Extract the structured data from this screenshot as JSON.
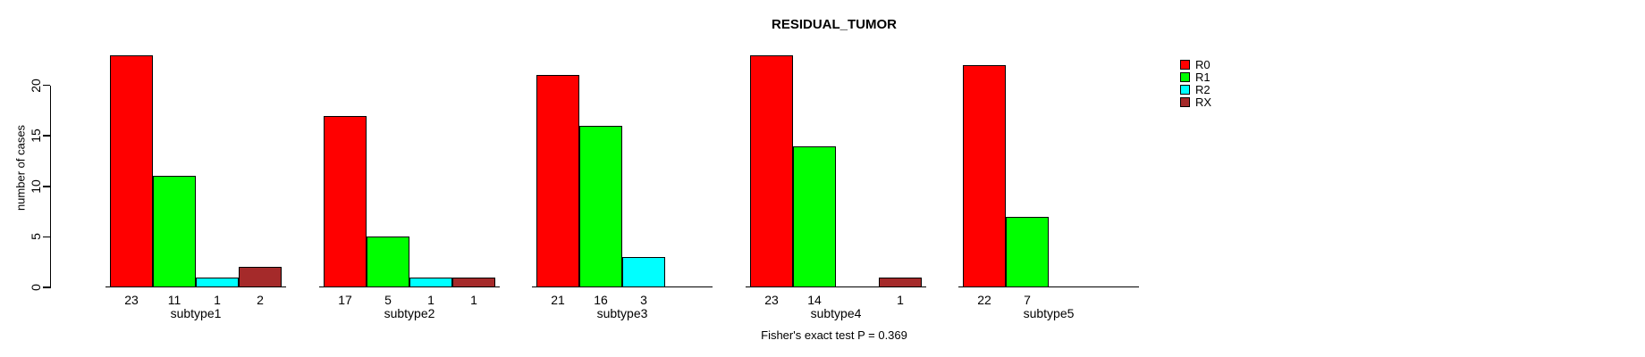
{
  "page": {
    "background_color": "#FFFFFF",
    "axis_color": "#000000"
  },
  "header": {
    "title": "RESIDUAL_TUMOR"
  },
  "footer": {
    "annotation": "Fisher's exact test P = 0.369"
  },
  "legend": {
    "items": [
      {
        "label": "R0",
        "color": "#FF0000"
      },
      {
        "label": "R1",
        "color": "#00FF00"
      },
      {
        "label": "R2",
        "color": "#00FFFF"
      },
      {
        "label": "RX",
        "color": "#A52A2A"
      }
    ]
  },
  "chart_data": {
    "type": "bar",
    "title": "RESIDUAL_TUMOR",
    "xlabel": "",
    "ylabel": "number of cases",
    "categories": [
      "subtype1",
      "subtype2",
      "subtype3",
      "subtype4",
      "subtype5"
    ],
    "series": [
      {
        "name": "R0",
        "color": "#FF0000",
        "values": [
          23,
          17,
          21,
          23,
          22
        ]
      },
      {
        "name": "R1",
        "color": "#00FF00",
        "values": [
          11,
          5,
          16,
          14,
          7
        ]
      },
      {
        "name": "R2",
        "color": "#00FFFF",
        "values": [
          1,
          1,
          3,
          0,
          0
        ]
      },
      {
        "name": "RX",
        "color": "#A52A2A",
        "values": [
          2,
          1,
          0,
          1,
          0
        ]
      }
    ],
    "bar_value_labels": [
      [
        "23",
        "11",
        "1",
        "2"
      ],
      [
        "17",
        "5",
        "1",
        "1"
      ],
      [
        "21",
        "16",
        "3",
        ""
      ],
      [
        "23",
        "14",
        "",
        "1"
      ],
      [
        "22",
        "7",
        "",
        ""
      ]
    ],
    "yticks": [
      0,
      5,
      10,
      15,
      20
    ],
    "ylim": [
      0,
      23.5
    ],
    "grid": false,
    "zero_bars_hidden": true,
    "legend_position": "right",
    "legend_entries": [
      "R0",
      "R1",
      "R2",
      "RX"
    ],
    "annotation": "Fisher's exact test P = 0.369"
  }
}
